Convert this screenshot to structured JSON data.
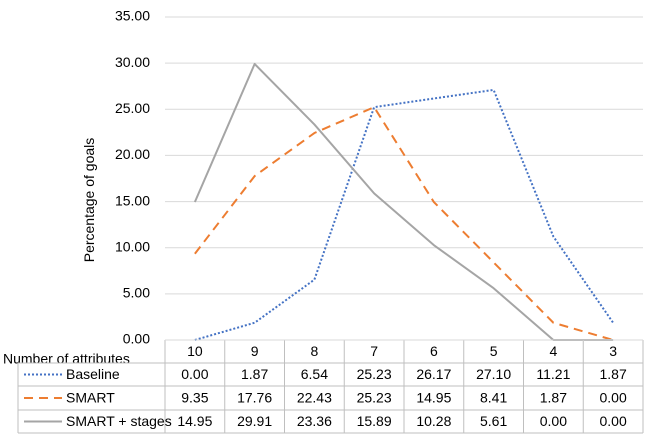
{
  "chart_data": {
    "type": "line",
    "title": "",
    "xlabel": "Number of attributes",
    "ylabel": "Percentage of goals",
    "ylim": [
      0,
      35
    ],
    "yticks": [
      "35.00",
      "30.00",
      "25.00",
      "20.00",
      "15.00",
      "10.00",
      "5.00",
      "0.00"
    ],
    "grid": true,
    "legend": "data-table",
    "categories": [
      "10",
      "9",
      "8",
      "7",
      "6",
      "5",
      "4",
      "3"
    ],
    "series": [
      {
        "name": "Baseline",
        "color": "#4472C4",
        "style": "dotted",
        "values": [
          0.0,
          1.87,
          6.54,
          25.23,
          26.17,
          27.1,
          11.21,
          1.87
        ],
        "labels": [
          "0.00",
          "1.87",
          "6.54",
          "25.23",
          "26.17",
          "27.10",
          "11.21",
          "1.87"
        ]
      },
      {
        "name": "SMART",
        "color": "#ED7D31",
        "style": "dashed",
        "values": [
          9.35,
          17.76,
          22.43,
          25.23,
          14.95,
          8.41,
          1.87,
          0.0
        ],
        "labels": [
          "9.35",
          "17.76",
          "22.43",
          "25.23",
          "14.95",
          "8.41",
          "1.87",
          "0.00"
        ]
      },
      {
        "name": "SMART + stages",
        "color": "#A5A5A5",
        "style": "solid",
        "values": [
          14.95,
          29.91,
          23.36,
          15.89,
          10.28,
          5.61,
          0.0,
          0.0
        ],
        "labels": [
          "14.95",
          "29.91",
          "23.36",
          "15.89",
          "10.28",
          "5.61",
          "0.00",
          "0.00"
        ]
      }
    ]
  }
}
